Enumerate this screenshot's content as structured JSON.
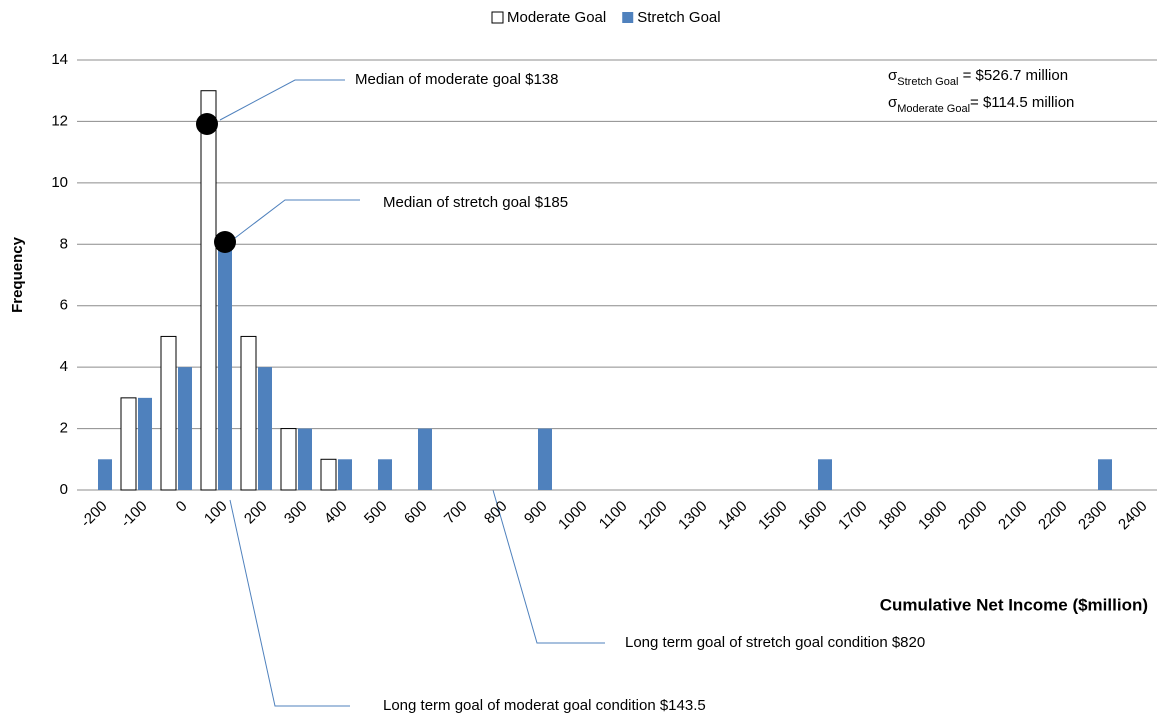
{
  "chart_data": {
    "type": "bar",
    "categories": [
      "-200",
      "-100",
      "0",
      "100",
      "200",
      "300",
      "400",
      "500",
      "600",
      "700",
      "800",
      "900",
      "1000",
      "1100",
      "1200",
      "1300",
      "1400",
      "1500",
      "1600",
      "1700",
      "1800",
      "1900",
      "2000",
      "2100",
      "2200",
      "2300",
      "2400"
    ],
    "series": [
      {
        "name": "Moderate Goal",
        "color": "#ffffff",
        "values": [
          0,
          3,
          5,
          13,
          5,
          2,
          1,
          0,
          0,
          0,
          0,
          0,
          0,
          0,
          0,
          0,
          0,
          0,
          0,
          0,
          0,
          0,
          0,
          0,
          0,
          0,
          0
        ]
      },
      {
        "name": "Stretch Goal",
        "color": "#4f81bd",
        "values": [
          1,
          3,
          4,
          8,
          4,
          2,
          1,
          1,
          2,
          0,
          0,
          2,
          0,
          0,
          0,
          0,
          0,
          0,
          1,
          0,
          0,
          0,
          0,
          0,
          0,
          1,
          0
        ]
      }
    ],
    "ylim": [
      0,
      14
    ],
    "yticks": [
      0,
      2,
      4,
      6,
      8,
      10,
      12,
      14
    ],
    "grid": true,
    "legend": "top",
    "x_label": "Cumulative Net Income ($million)",
    "y_label": "Frequency",
    "annotations": [
      "Median of moderate goal $138",
      "Median of stretch goal $185",
      "Long term goal of stretch goal condition $820",
      "Long term goal of moderat goal condition $143.5"
    ],
    "sigmas": [
      {
        "symbol": "σ",
        "subscript": "Stretch Goal",
        "text": " = $526.7 million"
      },
      {
        "symbol": "σ",
        "subscript": "Moderate Goal",
        "text": "= $114.5 million"
      }
    ]
  }
}
